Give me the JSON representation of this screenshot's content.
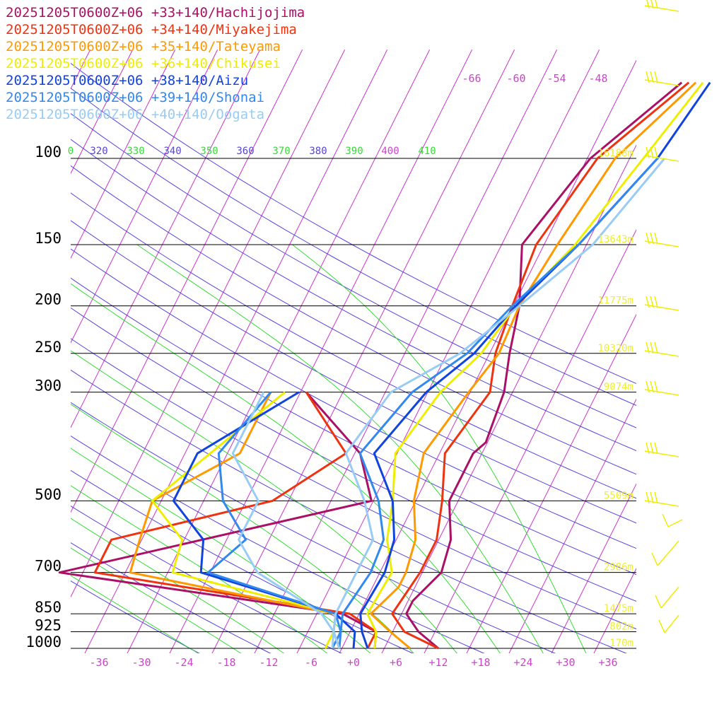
{
  "colors": {
    "isobar": "#000000",
    "isotherm": "#cc33cc",
    "dry_adiabat": "#5544dd",
    "moist_adiabat": "#33dd33",
    "height": "#eeee33",
    "wind": "#eeee00",
    "t_label": "#cc44cc"
  },
  "chart_data": {
    "type": "line",
    "title": "",
    "xlabel": "",
    "ylabel": "",
    "x_axis": {
      "label": "Temperature",
      "range": [
        -40,
        40
      ],
      "ticks": [
        -36,
        -30,
        -24,
        -18,
        -12,
        -6,
        0,
        6,
        12,
        18,
        24,
        30,
        36
      ],
      "tick_labels": [
        "-36",
        "-30",
        "-24",
        "-18",
        "-12",
        "-6",
        "+0",
        "+6",
        "+12",
        "+18",
        "+24",
        "+30",
        "+36"
      ]
    },
    "y_axis": {
      "label": "Pressure",
      "scale": "log",
      "range": [
        1000,
        100
      ],
      "ticks": [
        100,
        150,
        200,
        250,
        300,
        500,
        700,
        850,
        925,
        1000
      ]
    },
    "upper_temp_labels": [
      "-66",
      "-60",
      "-54",
      "-48"
    ],
    "theta_labels": [
      "0",
      "320",
      "330",
      "340",
      "350",
      "360",
      "370",
      "380",
      "390",
      "400",
      "410"
    ],
    "height_labels": [
      {
        "p": 100,
        "text": "16188m"
      },
      {
        "p": 150,
        "text": "13643m"
      },
      {
        "p": 200,
        "text": "11775m"
      },
      {
        "p": 250,
        "text": "10320m"
      },
      {
        "p": 300,
        "text": "9074m"
      },
      {
        "p": 500,
        "text": "5509m"
      },
      {
        "p": 700,
        "text": "2986m"
      },
      {
        "p": 850,
        "text": "1475m"
      },
      {
        "p": 925,
        "text": "802m"
      },
      {
        "p": 1000,
        "text": "170m"
      }
    ],
    "grid": true,
    "legend_position": "top-left",
    "series": [
      {
        "name": "20251205T0600Z+06 +33+140/Hachijojima",
        "color": "#aa1166",
        "temperature": [
          [
            1000,
            12
          ],
          [
            925,
            8
          ],
          [
            850,
            5
          ],
          [
            800,
            5
          ],
          [
            700,
            7
          ],
          [
            600,
            6
          ],
          [
            500,
            3
          ],
          [
            400,
            3
          ],
          [
            380,
            4
          ],
          [
            300,
            3
          ],
          [
            250,
            1
          ],
          [
            200,
            -1
          ],
          [
            150,
            -5
          ],
          [
            100,
            -1.5
          ],
          [
            70,
            6
          ]
        ],
        "dewpoint": [
          [
            1000,
            3
          ],
          [
            925,
            2
          ],
          [
            850,
            -4
          ],
          [
            700,
            -47
          ],
          [
            500,
            -8
          ],
          [
            400,
            -13
          ],
          [
            300,
            -25
          ]
        ]
      },
      {
        "name": "20251205T0600Z+06 +34+140/Miyakejima",
        "color": "#ee3311",
        "temperature": [
          [
            1000,
            12
          ],
          [
            925,
            6
          ],
          [
            850,
            3
          ],
          [
            700,
            4
          ],
          [
            600,
            4
          ],
          [
            500,
            2
          ],
          [
            400,
            -1
          ],
          [
            300,
            1
          ],
          [
            250,
            -1
          ],
          [
            200,
            -2
          ],
          [
            150,
            -3
          ],
          [
            100,
            -0.5
          ],
          [
            70,
            7
          ]
        ],
        "dewpoint": [
          [
            1000,
            2
          ],
          [
            925,
            2
          ],
          [
            850,
            -3
          ],
          [
            700,
            -42
          ],
          [
            600,
            -42
          ],
          [
            500,
            -22
          ],
          [
            400,
            -15
          ],
          [
            300,
            -25
          ]
        ]
      },
      {
        "name": "20251205T0600Z+06 +35+140/Tateyama",
        "color": "#ff9900",
        "temperature": [
          [
            1000,
            8
          ],
          [
            925,
            4
          ],
          [
            850,
            0
          ],
          [
            750,
            2
          ],
          [
            700,
            2
          ],
          [
            600,
            1
          ],
          [
            500,
            -2
          ],
          [
            400,
            -4
          ],
          [
            300,
            -2
          ],
          [
            250,
            -0.5
          ],
          [
            200,
            -1
          ],
          [
            150,
            0
          ],
          [
            100,
            2
          ],
          [
            70,
            8
          ]
        ],
        "dewpoint": [
          [
            1000,
            -2
          ],
          [
            925,
            -4
          ],
          [
            850,
            -5
          ],
          [
            700,
            -37
          ],
          [
            600,
            -38
          ],
          [
            500,
            -39
          ],
          [
            400,
            -30
          ],
          [
            300,
            -30
          ]
        ]
      },
      {
        "name": "20251205T0600Z+06 +36+140/Chikusei",
        "color": "#eeee00",
        "temperature": [
          [
            1000,
            3
          ],
          [
            925,
            2
          ],
          [
            850,
            -0.5
          ],
          [
            700,
            0
          ],
          [
            600,
            -3
          ],
          [
            500,
            -5
          ],
          [
            400,
            -8
          ],
          [
            300,
            -6
          ],
          [
            250,
            -3
          ],
          [
            200,
            -1.5
          ],
          [
            150,
            2.5
          ],
          [
            100,
            6
          ],
          [
            70,
            9
          ]
        ],
        "dewpoint": [
          [
            1000,
            -4
          ],
          [
            925,
            -4
          ],
          [
            850,
            -5
          ],
          [
            700,
            -31
          ],
          [
            600,
            -32
          ],
          [
            500,
            -39
          ],
          [
            300,
            -28
          ]
        ]
      },
      {
        "name": "20251205T0600Z+06 +38+140/Aizu",
        "color": "#1144dd",
        "temperature": [
          [
            1000,
            2
          ],
          [
            925,
            0
          ],
          [
            850,
            -1.5
          ],
          [
            700,
            -1
          ],
          [
            600,
            -2
          ],
          [
            500,
            -5
          ],
          [
            400,
            -11
          ],
          [
            300,
            -8
          ],
          [
            250,
            -4
          ],
          [
            200,
            -1.5
          ],
          [
            150,
            3
          ],
          [
            100,
            8
          ],
          [
            70,
            10
          ]
        ],
        "dewpoint": [
          [
            1000,
            0
          ],
          [
            925,
            -1
          ],
          [
            850,
            -5
          ],
          [
            700,
            -27
          ],
          [
            600,
            -29
          ],
          [
            500,
            -36
          ],
          [
            400,
            -36
          ],
          [
            300,
            -26
          ]
        ]
      },
      {
        "name": "20251205T0600Z+06 +39+140/Shonai",
        "color": "#3388ee",
        "temperature": [
          [
            1000,
            -2
          ],
          [
            925,
            -3
          ],
          [
            850,
            -4
          ],
          [
            700,
            -3
          ],
          [
            600,
            -3.5
          ],
          [
            500,
            -7
          ],
          [
            400,
            -13
          ],
          [
            300,
            -10
          ],
          [
            250,
            -5
          ],
          [
            200,
            -2
          ],
          [
            150,
            3
          ],
          [
            100,
            8
          ]
        ],
        "dewpoint": [
          [
            1000,
            -3
          ],
          [
            925,
            -3
          ],
          [
            850,
            -5
          ],
          [
            700,
            -26
          ],
          [
            600,
            -23
          ],
          [
            500,
            -29
          ],
          [
            400,
            -33
          ],
          [
            300,
            -30
          ]
        ]
      },
      {
        "name": "20251205T0600Z+06 +40+140/Oogata",
        "color": "#99ccf5",
        "temperature": [
          [
            1000,
            -3
          ],
          [
            925,
            -4
          ],
          [
            850,
            -5
          ],
          [
            700,
            -5
          ],
          [
            600,
            -5
          ],
          [
            500,
            -9
          ],
          [
            400,
            -15
          ],
          [
            300,
            -13
          ],
          [
            250,
            -6
          ],
          [
            200,
            -1
          ],
          [
            150,
            5
          ],
          [
            100,
            9
          ]
        ],
        "dewpoint": [
          [
            1000,
            -2
          ],
          [
            925,
            -4
          ],
          [
            850,
            -7
          ],
          [
            700,
            -19
          ],
          [
            600,
            -24
          ],
          [
            500,
            -24
          ],
          [
            400,
            -31
          ],
          [
            300,
            -31
          ]
        ]
      }
    ]
  }
}
